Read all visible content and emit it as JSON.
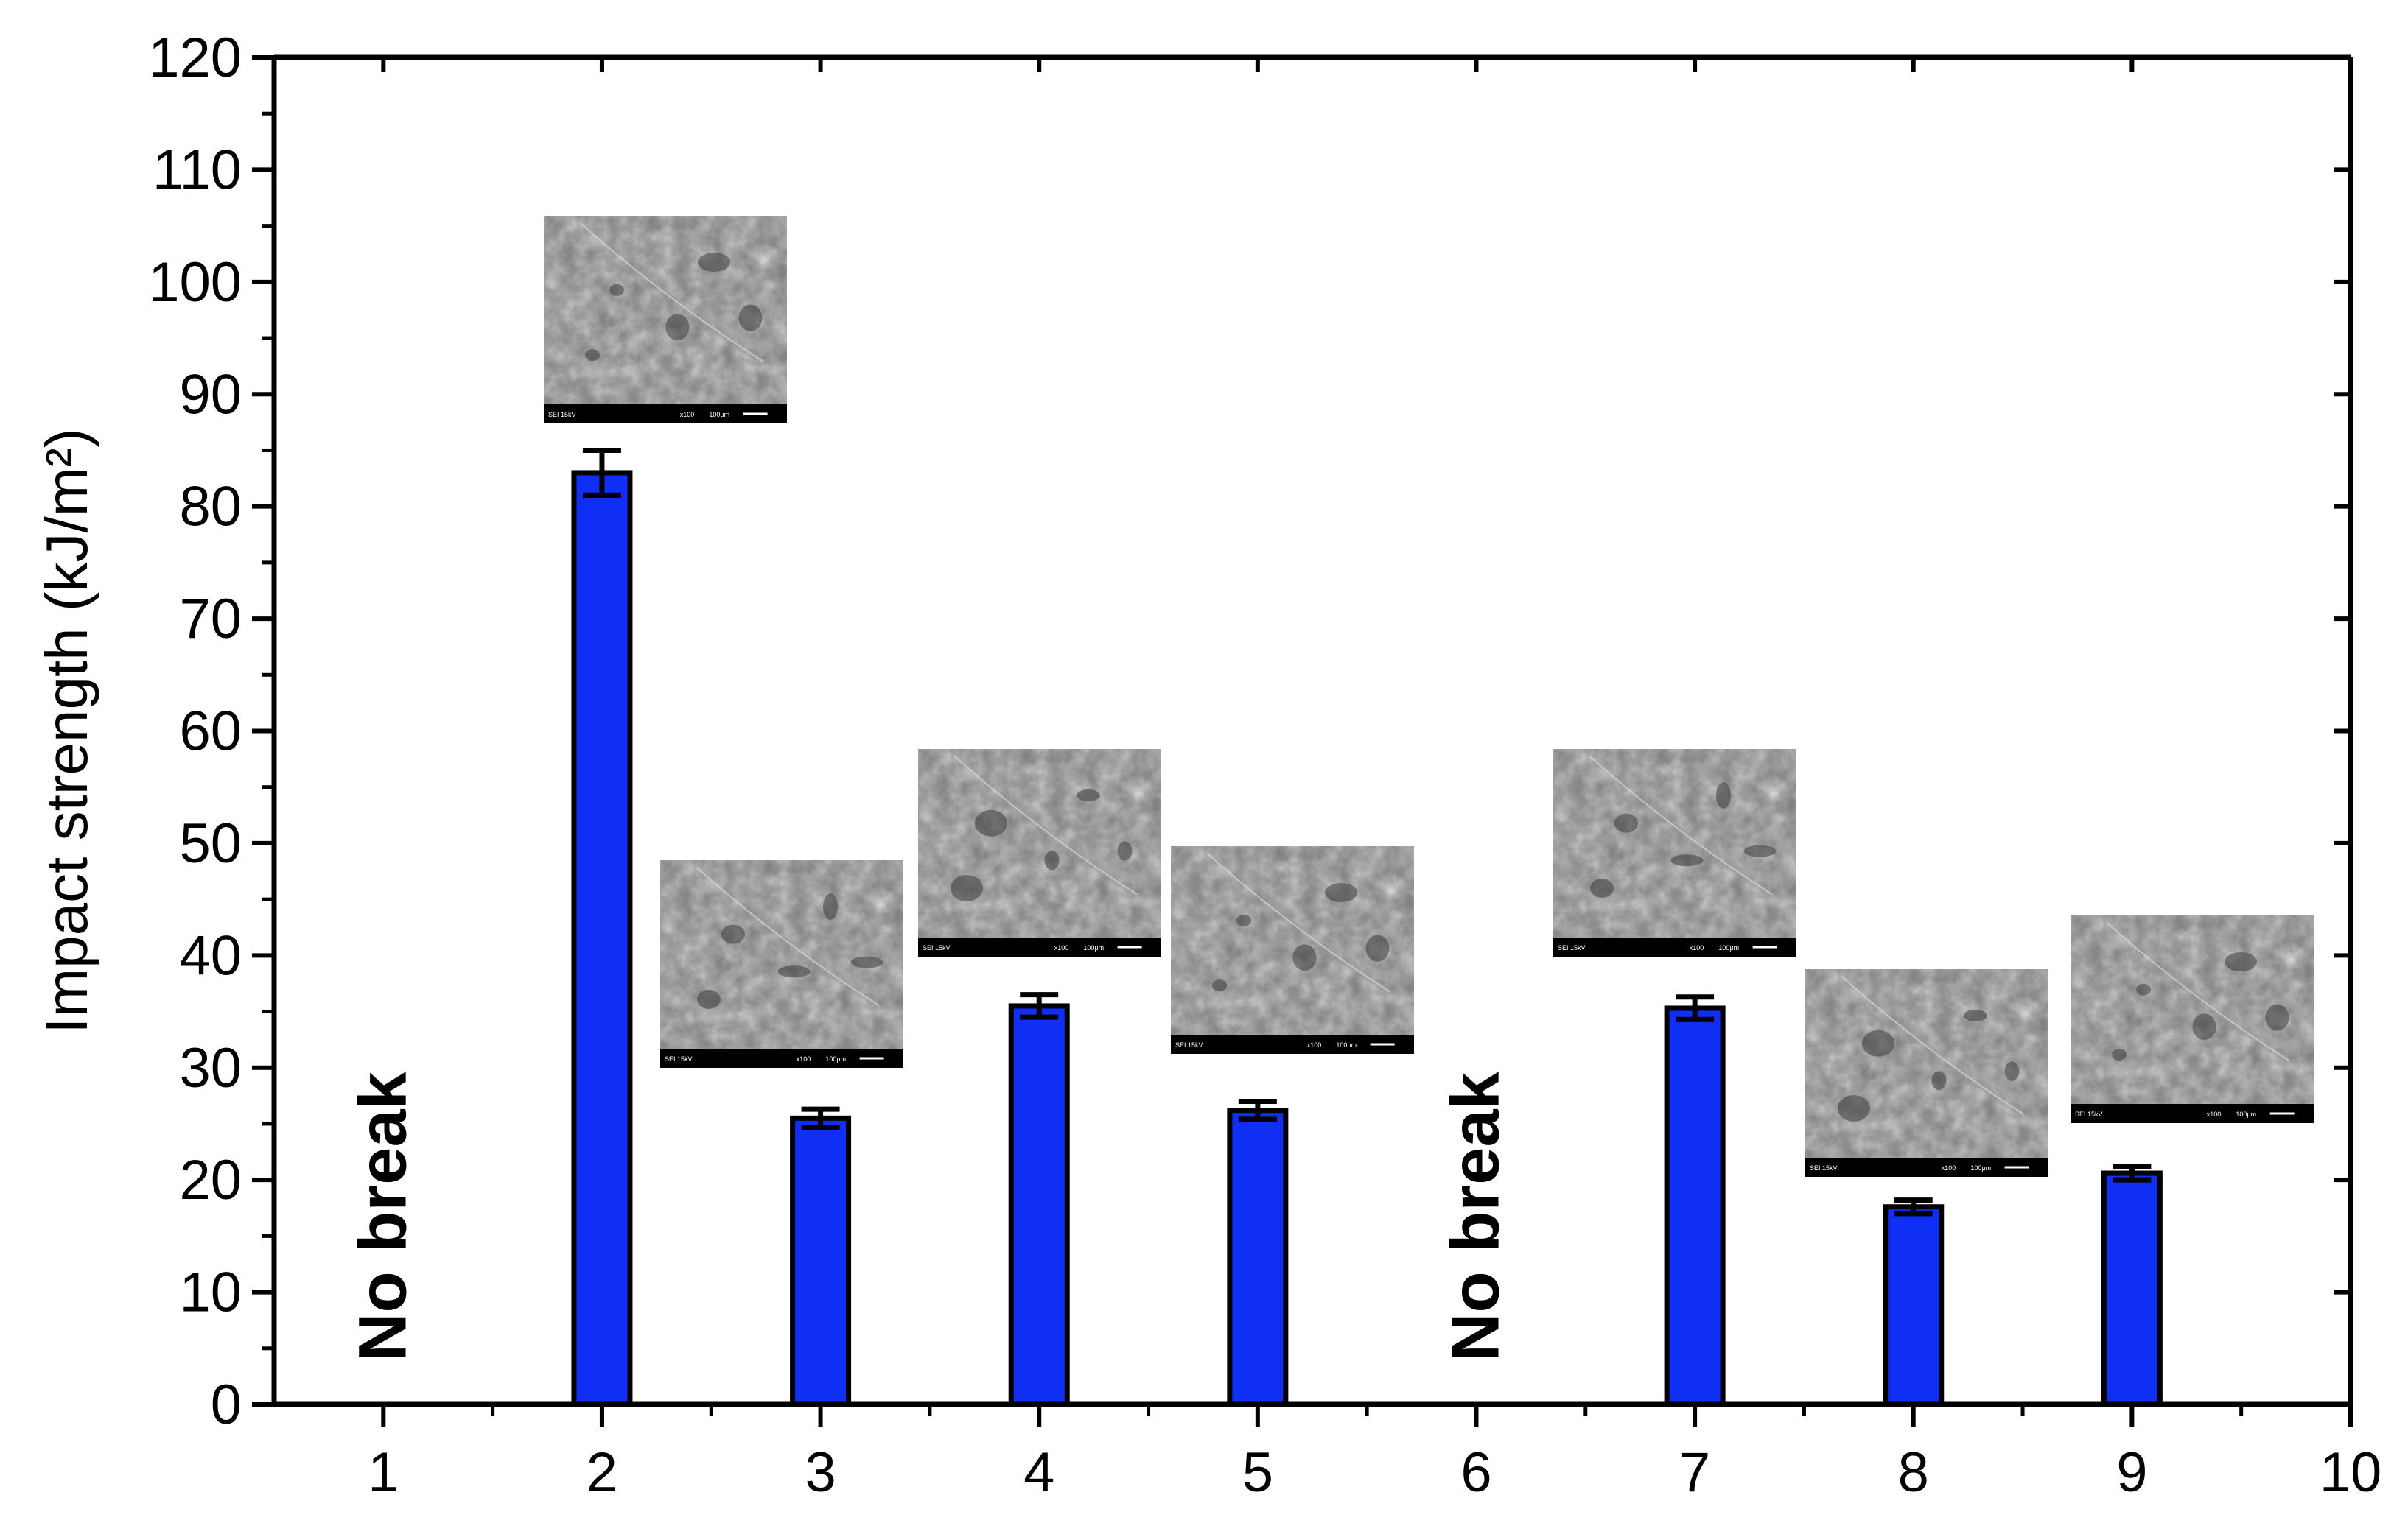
{
  "chart_data": {
    "type": "bar",
    "ylabel": "Impact strength (kJ/m²)",
    "xlabel": "",
    "xlim": [
      0.5,
      10
    ],
    "ylim": [
      0,
      120
    ],
    "x_ticks": [
      1,
      2,
      3,
      4,
      5,
      6,
      7,
      8,
      9,
      10
    ],
    "y_ticks": [
      0,
      10,
      20,
      30,
      40,
      50,
      60,
      70,
      80,
      90,
      100,
      110,
      120
    ],
    "grid": false,
    "bar_color": "#0f2ff5",
    "bars": [
      {
        "x": 2,
        "value": 83.0,
        "error": 2.0
      },
      {
        "x": 3,
        "value": 25.5,
        "error": 0.8
      },
      {
        "x": 4,
        "value": 35.5,
        "error": 1.0
      },
      {
        "x": 5,
        "value": 26.2,
        "error": 0.8
      },
      {
        "x": 7,
        "value": 35.3,
        "error": 1.0
      },
      {
        "x": 8,
        "value": 17.6,
        "error": 0.6
      },
      {
        "x": 9,
        "value": 20.6,
        "error": 0.6
      }
    ],
    "annotations": [
      {
        "x": 1,
        "text": "No break"
      },
      {
        "x": 6,
        "text": "No break"
      }
    ],
    "sem_insets": [
      {
        "bar_x": 2,
        "caption_left": "SEI   15kV",
        "caption_mid": "x100",
        "caption_right": "100μm"
      },
      {
        "bar_x": 3,
        "caption_left": "SEI   15kV",
        "caption_mid": "x100",
        "caption_right": "100μm"
      },
      {
        "bar_x": 4,
        "caption_left": "SEI   15kV",
        "caption_mid": "x100",
        "caption_right": "100μm"
      },
      {
        "bar_x": 5,
        "caption_left": "SEI   15kV",
        "caption_mid": "x100",
        "caption_right": "100μm"
      },
      {
        "bar_x": 7,
        "caption_left": "SEI   15kV",
        "caption_mid": "x100",
        "caption_right": "100μm"
      },
      {
        "bar_x": 8,
        "caption_left": "SEI   15kV",
        "caption_mid": "x100",
        "caption_right": "100μm"
      },
      {
        "bar_x": 9,
        "caption_left": "SEI   15kV",
        "caption_mid": "x100",
        "caption_right": "100μm"
      }
    ]
  }
}
